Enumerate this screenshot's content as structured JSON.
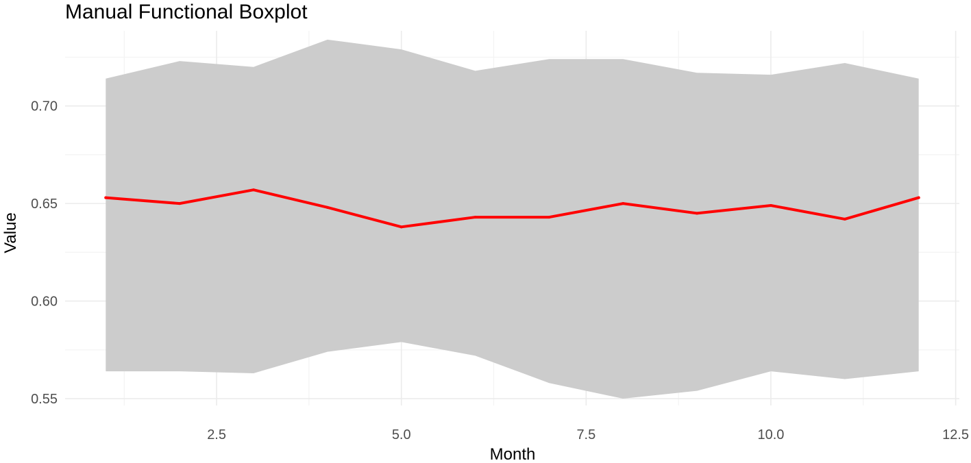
{
  "chart_data": {
    "type": "area",
    "title": "Manual Functional Boxplot",
    "xlabel": "Month",
    "ylabel": "Value",
    "xlim": [
      0.45,
      12.55
    ],
    "ylim": [
      0.5465,
      0.7385
    ],
    "x_ticks": [
      2.5,
      5.0,
      7.5,
      10.0,
      12.5
    ],
    "x_tick_labels": [
      "2.5",
      "5.0",
      "7.5",
      "10.0",
      "12.5"
    ],
    "y_ticks": [
      0.55,
      0.6,
      0.65,
      0.7
    ],
    "y_tick_labels": [
      "0.55",
      "0.60",
      "0.65",
      "0.70"
    ],
    "grid": true,
    "legend": "none",
    "x": [
      1,
      2,
      3,
      4,
      5,
      6,
      7,
      8,
      9,
      10,
      11,
      12
    ],
    "band": {
      "upper": [
        0.714,
        0.723,
        0.72,
        0.734,
        0.729,
        0.718,
        0.724,
        0.724,
        0.717,
        0.716,
        0.722,
        0.714
      ],
      "lower": [
        0.564,
        0.564,
        0.563,
        0.574,
        0.579,
        0.572,
        0.558,
        0.55,
        0.554,
        0.564,
        0.56,
        0.564
      ],
      "color": "#cccccc"
    },
    "series": [
      {
        "values": [
          0.653,
          0.65,
          0.657,
          0.648,
          0.638,
          0.643,
          0.643,
          0.65,
          0.645,
          0.649,
          0.642,
          0.653
        ],
        "color": "#ff0000"
      }
    ]
  }
}
